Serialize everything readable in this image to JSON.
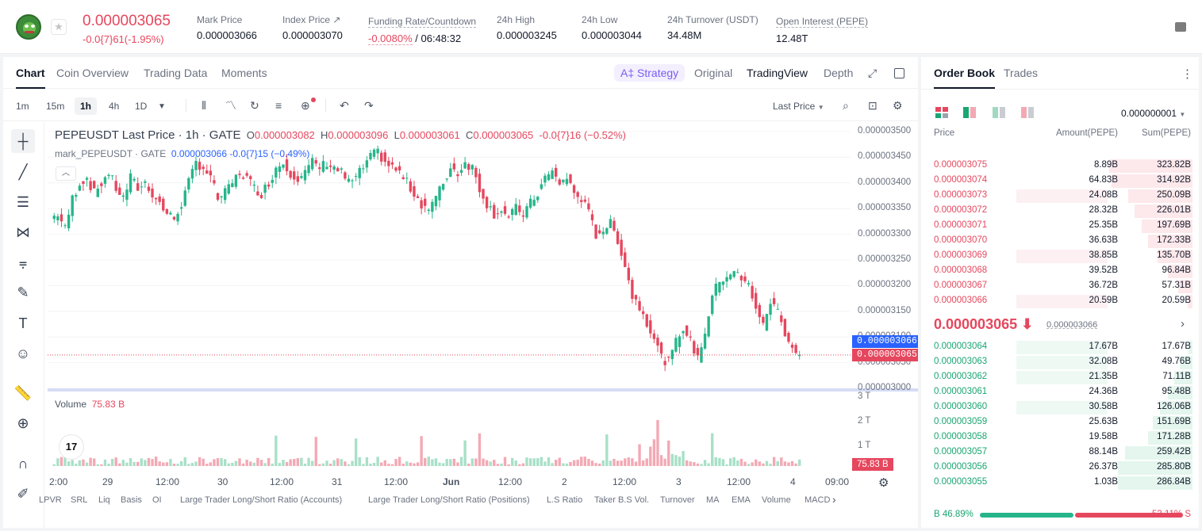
{
  "ticker": {
    "last_price": "0.000003065",
    "change": "-0.0{7}61(-1.95%)",
    "stats": [
      {
        "label": "Mark Price",
        "value": "0.000003066"
      },
      {
        "label": "Index Price ↗",
        "value": "0.000003070"
      },
      {
        "label": "Funding Rate/Countdown",
        "value_red": "-0.0080%",
        "value": "/ 06:48:32"
      },
      {
        "label": "24h High",
        "value": "0.000003245"
      },
      {
        "label": "24h Low",
        "value": "0.000003044"
      },
      {
        "label": "24h Turnover (USDT)",
        "value": "34.48M"
      },
      {
        "label": "Open Interest (PEPE)",
        "value": "12.48T"
      }
    ]
  },
  "chart_tabs": [
    "Chart",
    "Coin Overview",
    "Trading Data",
    "Moments"
  ],
  "strategy_label": "A‡ Strategy",
  "view_tabs": [
    "Original",
    "TradingView",
    "Depth"
  ],
  "intervals": [
    "1m",
    "15m",
    "1h",
    "4h",
    "1D"
  ],
  "price_type_select": "Last Price",
  "legend": {
    "symbol": "PEPEUSDT Last Price · 1h · GATE",
    "o_label": "O",
    "o": "0.000003082",
    "h_label": "H",
    "h": "0.000003096",
    "l_label": "L",
    "l": "0.000003061",
    "c_label": "C",
    "c": "0.000003065",
    "chg": "-0.0{7}16 (−0.52%)",
    "mark_symbol": "mark_PEPEUSDT · GATE",
    "mark_value": "0.000003066 -0.0{7}15 (−0.49%)",
    "volume_label": "Volume",
    "volume_value": "75.83 B"
  },
  "price_axis": [
    "0.000003500",
    "0.000003450",
    "0.000003400",
    "0.000003350",
    "0.000003300",
    "0.000003250",
    "0.000003200",
    "0.000003150",
    "0.000003100",
    "0.000003050",
    "0.000003000"
  ],
  "price_tags": {
    "mark": "0.000003066",
    "last": "0.000003065"
  },
  "volume_axis": [
    "3 T",
    "2 T",
    "1 T"
  ],
  "volume_tag": "75.83 B",
  "time_axis": [
    "2:00",
    "29",
    "12:00",
    "30",
    "12:00",
    "31",
    "12:00",
    "Jun",
    "12:00",
    "2",
    "12:00",
    "3",
    "12:00",
    "4",
    "09:00"
  ],
  "indicators": [
    "LPVR",
    "SRL",
    "Liq",
    "Basis",
    "OI",
    "Large Trader Long/Short Ratio (Accounts)",
    "Large Trader Long/Short Ratio (Positions)",
    "L.S Ratio",
    "Taker B.S Vol.",
    "Turnover",
    "MA",
    "EMA",
    "Volume",
    "MACD"
  ],
  "colors": {
    "up": "#26b58a",
    "down": "#e5475e",
    "mark_tag": "#2962ff",
    "accent": "#7b5cf0"
  },
  "chart_data": {
    "type": "candlestick",
    "interval": "1h",
    "y_range": [
      3e-06,
      3.5e-06
    ],
    "close_path": [
      3.33,
      3.34,
      3.31,
      3.37,
      3.4,
      3.41,
      3.38,
      3.4,
      3.42,
      3.39,
      3.37,
      3.41,
      3.39,
      3.4,
      3.38,
      3.36,
      3.34,
      3.33,
      3.36,
      3.4,
      3.44,
      3.43,
      3.41,
      3.37,
      3.38,
      3.4,
      3.42,
      3.41,
      3.39,
      3.38,
      3.4,
      3.43,
      3.44,
      3.42,
      3.41,
      3.42,
      3.44,
      3.43,
      3.44,
      3.43,
      3.42,
      3.4,
      3.41,
      3.43,
      3.45,
      3.46,
      3.44,
      3.43,
      3.42,
      3.4,
      3.38,
      3.36,
      3.35,
      3.37,
      3.4,
      3.43,
      3.42,
      3.44,
      3.43,
      3.39,
      3.36,
      3.34,
      3.35,
      3.33,
      3.35,
      3.34,
      3.36,
      3.38,
      3.41,
      3.42,
      3.4,
      3.41,
      3.38,
      3.37,
      3.34,
      3.3,
      3.31,
      3.32,
      3.29,
      3.24,
      3.18,
      3.16,
      3.13,
      3.1,
      3.06,
      3.05,
      3.09,
      3.12,
      3.09,
      3.06,
      3.11,
      3.18,
      3.21,
      3.22,
      3.23,
      3.21,
      3.2,
      3.16,
      3.12,
      3.17,
      3.15,
      3.11,
      3.08,
      3.065
    ]
  },
  "orderbook": {
    "tabs": [
      "Order Book",
      "Trades"
    ],
    "tick_size": "0.000000001",
    "columns": [
      "Price",
      "Amount(PEPE)",
      "Sum(PEPE)"
    ],
    "asks": [
      {
        "price": "0.000003075",
        "amount": "8.89B",
        "sum": "323.82B",
        "amt_frac": 0.0,
        "sum_frac": 0.97
      },
      {
        "price": "0.000003074",
        "amount": "64.83B",
        "sum": "314.92B",
        "amt_frac": 0.0,
        "sum_frac": 0.94
      },
      {
        "price": "0.000003073",
        "amount": "24.08B",
        "sum": "250.09B",
        "amt_frac": 0.87,
        "sum_frac": 0.75
      },
      {
        "price": "0.000003072",
        "amount": "28.32B",
        "sum": "226.01B",
        "amt_frac": 0.0,
        "sum_frac": 0.68
      },
      {
        "price": "0.000003071",
        "amount": "25.35B",
        "sum": "197.69B",
        "amt_frac": 0.0,
        "sum_frac": 0.59
      },
      {
        "price": "0.000003070",
        "amount": "36.63B",
        "sum": "172.33B",
        "amt_frac": 0.0,
        "sum_frac": 0.52
      },
      {
        "price": "0.000003069",
        "amount": "38.85B",
        "sum": "135.70B",
        "amt_frac": 0.87,
        "sum_frac": 0.41
      },
      {
        "price": "0.000003068",
        "amount": "39.52B",
        "sum": "96.84B",
        "amt_frac": 0.0,
        "sum_frac": 0.29
      },
      {
        "price": "0.000003067",
        "amount": "36.72B",
        "sum": "57.31B",
        "amt_frac": 0.0,
        "sum_frac": 0.17
      },
      {
        "price": "0.000003066",
        "amount": "20.59B",
        "sum": "20.59B",
        "amt_frac": 0.87,
        "sum_frac": 0.06
      }
    ],
    "mid_price": "0.000003065 ⬇",
    "mid_mark": "0.000003066",
    "bids": [
      {
        "price": "0.000003064",
        "amount": "17.67B",
        "sum": "17.67B",
        "amt_frac": 0.87,
        "sum_frac": 0.05
      },
      {
        "price": "0.000003063",
        "amount": "32.08B",
        "sum": "49.76B",
        "amt_frac": 0.87,
        "sum_frac": 0.15
      },
      {
        "price": "0.000003062",
        "amount": "21.35B",
        "sum": "71.11B",
        "amt_frac": 0.87,
        "sum_frac": 0.21
      },
      {
        "price": "0.000003061",
        "amount": "24.36B",
        "sum": "95.48B",
        "amt_frac": 0.0,
        "sum_frac": 0.29
      },
      {
        "price": "0.000003060",
        "amount": "30.58B",
        "sum": "126.06B",
        "amt_frac": 0.87,
        "sum_frac": 0.38
      },
      {
        "price": "0.000003059",
        "amount": "25.63B",
        "sum": "151.69B",
        "amt_frac": 0.0,
        "sum_frac": 0.46
      },
      {
        "price": "0.000003058",
        "amount": "19.58B",
        "sum": "171.28B",
        "amt_frac": 0.0,
        "sum_frac": 0.52
      },
      {
        "price": "0.000003057",
        "amount": "88.14B",
        "sum": "259.42B",
        "amt_frac": 0.0,
        "sum_frac": 0.79
      },
      {
        "price": "0.000003056",
        "amount": "26.37B",
        "sum": "285.80B",
        "amt_frac": 0.0,
        "sum_frac": 0.87
      },
      {
        "price": "0.000003055",
        "amount": "1.03B",
        "sum": "286.84B",
        "amt_frac": 0.0,
        "sum_frac": 0.87
      }
    ],
    "buy_ratio": "B 46.89%",
    "sell_ratio": "53.11% S",
    "buy_frac": 0.4689
  }
}
